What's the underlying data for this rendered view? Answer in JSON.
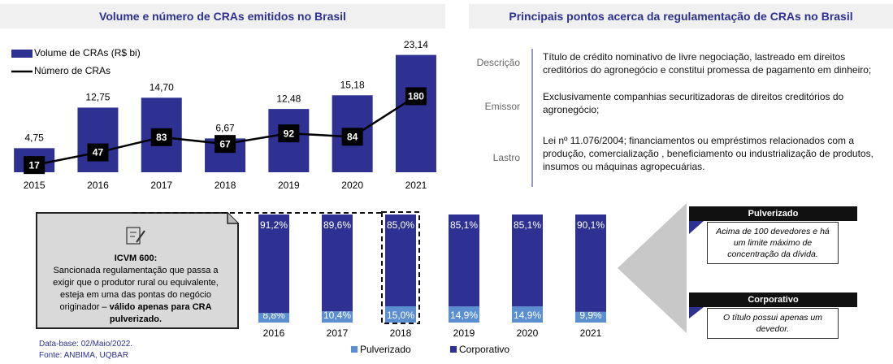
{
  "chart_data": [
    {
      "type": "bar",
      "title": "Volume e número de CRAs emitidos no Brasil",
      "categories": [
        "2015",
        "2016",
        "2017",
        "2018",
        "2019",
        "2020",
        "2021"
      ],
      "series": [
        {
          "name": "Volume de CRAs (R$ bi)",
          "type": "bar",
          "color": "#2e3192",
          "values": [
            4.75,
            12.75,
            14.7,
            6.67,
            12.48,
            15.18,
            23.14
          ],
          "value_labels": [
            "4,75",
            "12,75",
            "14,70",
            "6,67",
            "12,48",
            "15,18",
            "23,14"
          ]
        },
        {
          "name": "Número de CRAs",
          "type": "line",
          "color": "#000000",
          "axis": "y2",
          "values": [
            17,
            47,
            83,
            67,
            92,
            84,
            180
          ]
        }
      ],
      "ylim": [
        0,
        25
      ],
      "y2lim": [
        0,
        300
      ],
      "legend": "top-left"
    },
    {
      "type": "stacked_bar",
      "categories": [
        "2016",
        "2017",
        "2018",
        "2019",
        "2020",
        "2021"
      ],
      "series": [
        {
          "name": "Pulverizado",
          "color": "#5b8fd0",
          "values": [
            8.8,
            10.4,
            15.0,
            14.9,
            14.9,
            9.9
          ],
          "value_labels": [
            "8,8%",
            "10,4%",
            "15,0%",
            "14,9%",
            "14,9%",
            "9,9%"
          ]
        },
        {
          "name": "Corporativo",
          "color": "#2e3192",
          "values": [
            91.2,
            89.6,
            85.0,
            85.1,
            85.1,
            90.1
          ],
          "value_labels": [
            "91,2%",
            "89,6%",
            "85,0%",
            "85,1%",
            "85,1%",
            "90,1%"
          ]
        }
      ],
      "ylim": [
        0,
        100
      ],
      "legend": "bottom",
      "highlight": "2018"
    }
  ],
  "table": {
    "title": "Principais pontos acerca da regulamentação de CRAs no Brasil",
    "rows": [
      [
        "Descrição",
        "Título de crédito nominativo de livre negociação, lastreado em direitos creditórios do agronegócio e constitui promessa de pagamento em dinheiro;"
      ],
      [
        "Emissor",
        "Exclusivamente companhias securitizadoras de direitos creditórios do agronegócio;"
      ],
      [
        "Lastro",
        "Lei nº 11.076/2004; financiamentos ou empréstimos relacionados com a produção, comercialização , beneficiamento ou industrialização de produtos, insumos ou máquinas agropecuárias."
      ]
    ]
  },
  "callout": {
    "title": "ICVM 600:",
    "text": "Sancionada regulamentação que passa a exigir que o produtor rural ou equivalente, esteja em uma das pontas do negócio originador –",
    "bold": "válido apenas para CRA pulverizado."
  },
  "definitions": [
    {
      "title": "Pulverizado",
      "text": "Acima de 100 devedores e há um limite máximo de concentração da dívida."
    },
    {
      "title": "Corporativo",
      "text": "O título possui apenas um devedor."
    }
  ],
  "footnotes": [
    "Data-base: 02/Maio/2022.",
    "Fonte: ANBIMA, UQBAR"
  ]
}
